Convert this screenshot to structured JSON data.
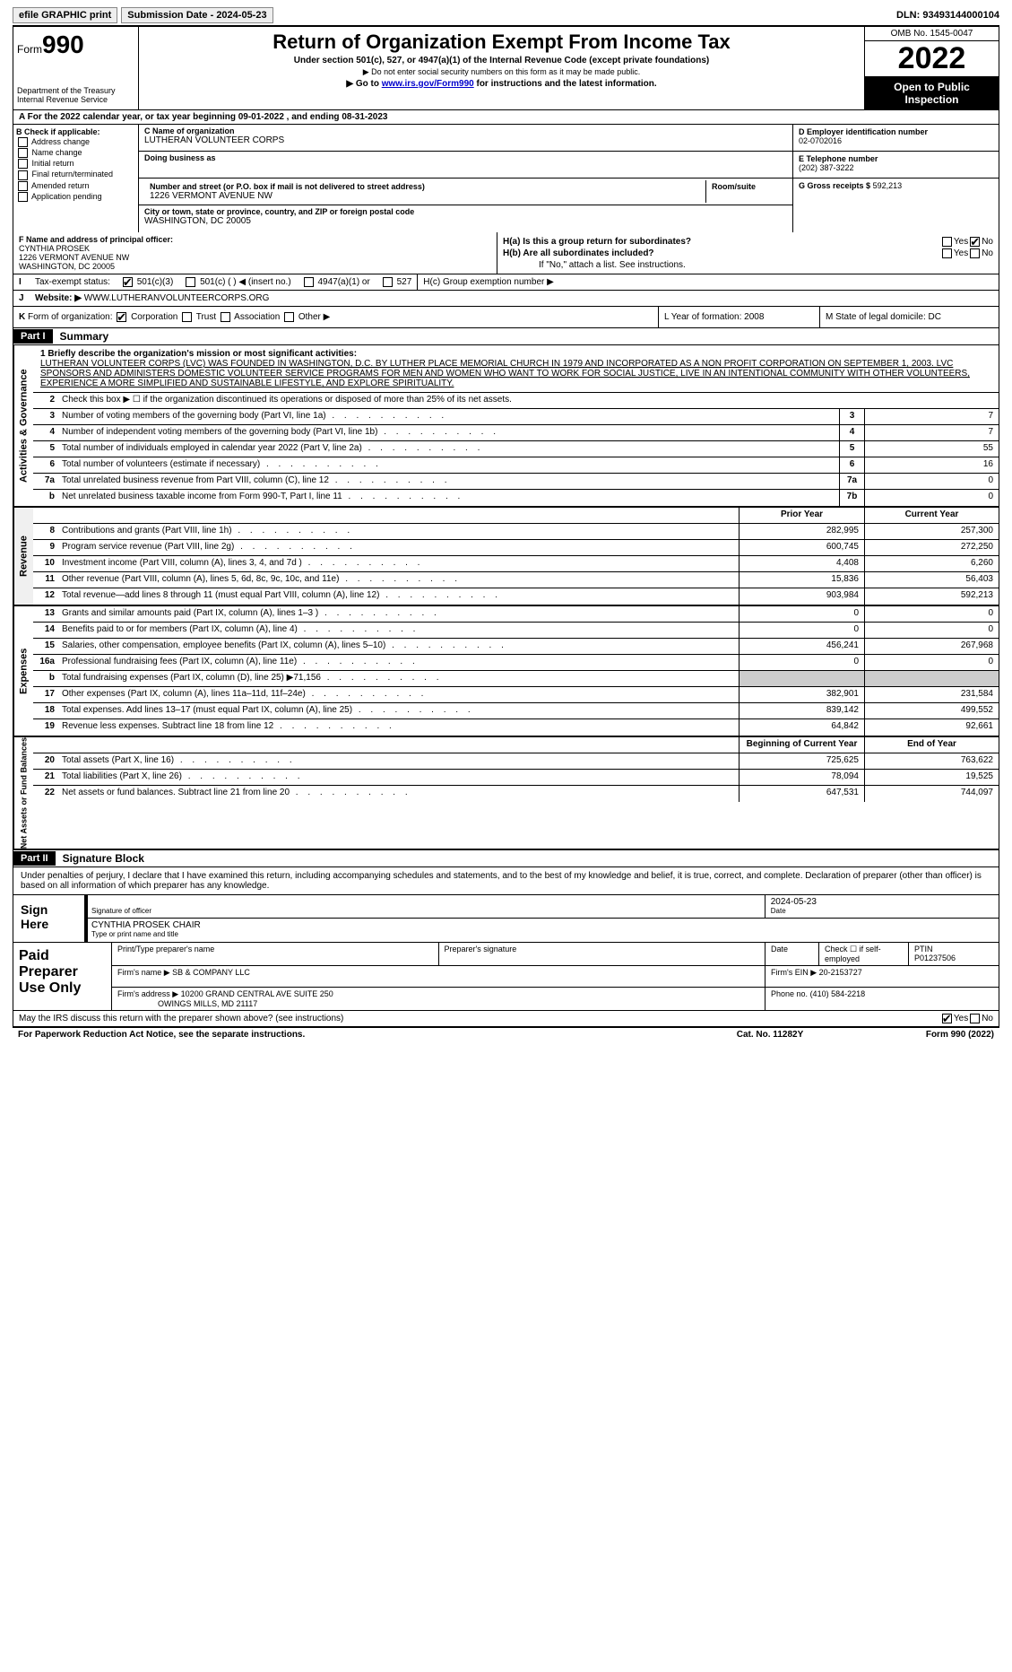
{
  "topbar": {
    "efile": "efile GRAPHIC print",
    "submission": "Submission Date - 2024-05-23",
    "dln": "DLN: 93493144000104"
  },
  "header": {
    "form_prefix": "Form",
    "form_num": "990",
    "dept": "Department of the Treasury Internal Revenue Service",
    "title": "Return of Organization Exempt From Income Tax",
    "sub": "Under section 501(c), 527, or 4947(a)(1) of the Internal Revenue Code (except private foundations)",
    "note1": "▶ Do not enter social security numbers on this form as it may be made public.",
    "note2_pre": "▶ Go to ",
    "note2_link": "www.irs.gov/Form990",
    "note2_post": " for instructions and the latest information.",
    "omb": "OMB No. 1545-0047",
    "year": "2022",
    "open": "Open to Public Inspection"
  },
  "row_a": "A For the 2022 calendar year, or tax year beginning 09-01-2022    , and ending 08-31-2023",
  "col_b": {
    "title": "B Check if applicable:",
    "opts": [
      "Address change",
      "Name change",
      "Initial return",
      "Final return/terminated",
      "Amended return",
      "Application pending"
    ]
  },
  "col_c": {
    "name_lab": "C Name of organization",
    "name": "LUTHERAN VOLUNTEER CORPS",
    "dba_lab": "Doing business as",
    "addr_lab": "Number and street (or P.O. box if mail is not delivered to street address)",
    "addr": "1226 VERMONT AVENUE NW",
    "room_lab": "Room/suite",
    "city_lab": "City or town, state or province, country, and ZIP or foreign postal code",
    "city": "WASHINGTON, DC  20005"
  },
  "col_d": {
    "ein_lab": "D Employer identification number",
    "ein": "02-0702016",
    "tel_lab": "E Telephone number",
    "tel": "(202) 387-3222",
    "gross_lab": "G Gross receipts $",
    "gross": "592,213"
  },
  "col_f": {
    "lab": "F  Name and address of principal officer:",
    "name": "CYNTHIA PROSEK",
    "addr1": "1226 VERMONT AVENUE NW",
    "addr2": "WASHINGTON, DC  20005"
  },
  "col_h": {
    "ha": "H(a)  Is this a group return for subordinates?",
    "hb": "H(b)  Are all subordinates included?",
    "hb_note": "If \"No,\" attach a list. See instructions.",
    "hc": "H(c)  Group exemption number ▶",
    "yes": "Yes",
    "no": "No"
  },
  "row_i": {
    "lab": "I",
    "txt": "Tax-exempt status:",
    "o1": "501(c)(3)",
    "o2": "501(c) (  ) ◀ (insert no.)",
    "o3": "4947(a)(1) or",
    "o4": "527"
  },
  "row_j": {
    "lab": "J",
    "txt": "Website: ▶",
    "url": "WWW.LUTHERANVOLUNTEERCORPS.ORG"
  },
  "row_k": {
    "lab": "K",
    "txt": "Form of organization:",
    "o1": "Corporation",
    "o2": "Trust",
    "o3": "Association",
    "o4": "Other ▶"
  },
  "row_l": {
    "l": "L Year of formation: 2008",
    "m": "M State of legal domicile: DC"
  },
  "part1": {
    "hdr": "Part I",
    "title": "Summary"
  },
  "mission": {
    "lab": "1  Briefly describe the organization's mission or most significant activities:",
    "txt": "LUTHERAN VOLUNTEER CORPS (LVC) WAS FOUNDED IN WASHINGTON, D.C. BY LUTHER PLACE MEMORIAL CHURCH IN 1979 AND INCORPORATED AS A NON PROFIT CORPORATION ON SEPTEMBER 1, 2003. LVC SPONSORS AND ADMINISTERS DOMESTIC VOLUNTEER SERVICE PROGRAMS FOR MEN AND WOMEN WHO WANT TO WORK FOR SOCIAL JUSTICE, LIVE IN AN INTENTIONAL COMMUNITY WITH OTHER VOLUNTEERS, EXPERIENCE A MORE SIMPLIFIED AND SUSTAINABLE LIFESTYLE, AND EXPLORE SPIRITUALITY."
  },
  "gov": {
    "vtab": "Activities & Governance",
    "l2": "Check this box ▶ ☐ if the organization discontinued its operations or disposed of more than 25% of its net assets.",
    "lines": [
      {
        "n": "3",
        "d": "Number of voting members of the governing body (Part VI, line 1a)",
        "b": "3",
        "v": "7"
      },
      {
        "n": "4",
        "d": "Number of independent voting members of the governing body (Part VI, line 1b)",
        "b": "4",
        "v": "7"
      },
      {
        "n": "5",
        "d": "Total number of individuals employed in calendar year 2022 (Part V, line 2a)",
        "b": "5",
        "v": "55"
      },
      {
        "n": "6",
        "d": "Total number of volunteers (estimate if necessary)",
        "b": "6",
        "v": "16"
      },
      {
        "n": "7a",
        "d": "Total unrelated business revenue from Part VIII, column (C), line 12",
        "b": "7a",
        "v": "0"
      },
      {
        "n": "b",
        "d": "Net unrelated business taxable income from Form 990-T, Part I, line 11",
        "b": "7b",
        "v": "0"
      }
    ]
  },
  "rev": {
    "vtab": "Revenue",
    "hdr_prior": "Prior Year",
    "hdr_curr": "Current Year",
    "lines": [
      {
        "n": "8",
        "d": "Contributions and grants (Part VIII, line 1h)",
        "p": "282,995",
        "c": "257,300"
      },
      {
        "n": "9",
        "d": "Program service revenue (Part VIII, line 2g)",
        "p": "600,745",
        "c": "272,250"
      },
      {
        "n": "10",
        "d": "Investment income (Part VIII, column (A), lines 3, 4, and 7d )",
        "p": "4,408",
        "c": "6,260"
      },
      {
        "n": "11",
        "d": "Other revenue (Part VIII, column (A), lines 5, 6d, 8c, 9c, 10c, and 11e)",
        "p": "15,836",
        "c": "56,403"
      },
      {
        "n": "12",
        "d": "Total revenue—add lines 8 through 11 (must equal Part VIII, column (A), line 12)",
        "p": "903,984",
        "c": "592,213"
      }
    ]
  },
  "exp": {
    "vtab": "Expenses",
    "lines": [
      {
        "n": "13",
        "d": "Grants and similar amounts paid (Part IX, column (A), lines 1–3 )",
        "p": "0",
        "c": "0"
      },
      {
        "n": "14",
        "d": "Benefits paid to or for members (Part IX, column (A), line 4)",
        "p": "0",
        "c": "0"
      },
      {
        "n": "15",
        "d": "Salaries, other compensation, employee benefits (Part IX, column (A), lines 5–10)",
        "p": "456,241",
        "c": "267,968"
      },
      {
        "n": "16a",
        "d": "Professional fundraising fees (Part IX, column (A), line 11e)",
        "p": "0",
        "c": "0"
      },
      {
        "n": "b",
        "d": "Total fundraising expenses (Part IX, column (D), line 25) ▶71,156",
        "p": "",
        "c": "",
        "gray": true
      },
      {
        "n": "17",
        "d": "Other expenses (Part IX, column (A), lines 11a–11d, 11f–24e)",
        "p": "382,901",
        "c": "231,584"
      },
      {
        "n": "18",
        "d": "Total expenses. Add lines 13–17 (must equal Part IX, column (A), line 25)",
        "p": "839,142",
        "c": "499,552"
      },
      {
        "n": "19",
        "d": "Revenue less expenses. Subtract line 18 from line 12",
        "p": "64,842",
        "c": "92,661"
      }
    ]
  },
  "net": {
    "vtab": "Net Assets or Fund Balances",
    "hdr_beg": "Beginning of Current Year",
    "hdr_end": "End of Year",
    "lines": [
      {
        "n": "20",
        "d": "Total assets (Part X, line 16)",
        "p": "725,625",
        "c": "763,622"
      },
      {
        "n": "21",
        "d": "Total liabilities (Part X, line 26)",
        "p": "78,094",
        "c": "19,525"
      },
      {
        "n": "22",
        "d": "Net assets or fund balances. Subtract line 21 from line 20",
        "p": "647,531",
        "c": "744,097"
      }
    ]
  },
  "part2": {
    "hdr": "Part II",
    "title": "Signature Block"
  },
  "sig": {
    "decl": "Under penalties of perjury, I declare that I have examined this return, including accompanying schedules and statements, and to the best of my knowledge and belief, it is true, correct, and complete. Declaration of preparer (other than officer) is based on all information of which preparer has any knowledge.",
    "sign_here": "Sign Here",
    "sig_of": "Signature of officer",
    "date_lab": "Date",
    "date": "2024-05-23",
    "name": "CYNTHIA PROSEK CHAIR",
    "name_lab": "Type or print name and title"
  },
  "prep": {
    "title": "Paid Preparer Use Only",
    "h1": "Print/Type preparer's name",
    "h2": "Preparer's signature",
    "h3": "Date",
    "h4": "Check ☐ if self-employed",
    "h5_lab": "PTIN",
    "h5": "P01237506",
    "firm_lab": "Firm's name   ▶",
    "firm": "SB & COMPANY LLC",
    "ein_lab": "Firm's EIN ▶",
    "ein": "20-2153727",
    "addr_lab": "Firm's address ▶",
    "addr1": "10200 GRAND CENTRAL AVE SUITE 250",
    "addr2": "OWINGS MILLS, MD  21117",
    "phone_lab": "Phone no.",
    "phone": "(410) 584-2218"
  },
  "foot": {
    "q": "May the IRS discuss this return with the preparer shown above? (see instructions)",
    "yes": "Yes",
    "no": "No",
    "pra": "For Paperwork Reduction Act Notice, see the separate instructions.",
    "cat": "Cat. No. 11282Y",
    "form": "Form 990 (2022)"
  }
}
